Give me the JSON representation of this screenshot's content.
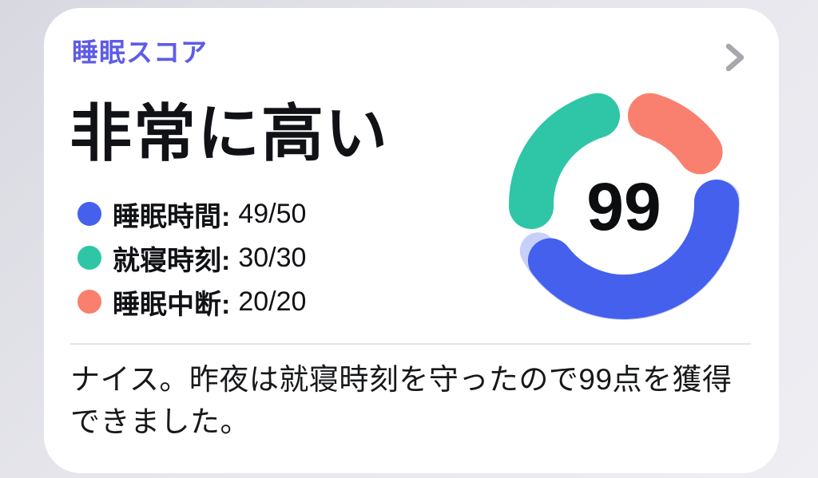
{
  "card": {
    "header": {
      "title": "睡眠スコア",
      "chevron_icon": "chevron-right"
    },
    "rating": "非常に高い",
    "legend": [
      {
        "label": "睡眠時間:",
        "value": "49/50",
        "color": "#4560ec"
      },
      {
        "label": "就寝時刻:",
        "value": "30/30",
        "color": "#2ec6a6"
      },
      {
        "label": "睡眠中断:",
        "value": "20/20",
        "color": "#f9806e"
      }
    ],
    "score": "99",
    "message": "ナイス。昨夜は就寝時刻を守ったので99点を獲得できました。"
  },
  "chart_data": {
    "type": "pie",
    "title": "睡眠スコア",
    "center_label": "99",
    "total_score": 99,
    "max_score": 100,
    "segments": [
      {
        "name": "睡眠中断",
        "value": 20,
        "max": 20,
        "color": "#f9806e"
      },
      {
        "name": "睡眠時間",
        "value": 49,
        "max": 50,
        "color": "#4560ec",
        "track_color": "#c7d0f8"
      },
      {
        "name": "就寝時刻",
        "value": 30,
        "max": 30,
        "color": "#2ec6a6"
      }
    ],
    "layout": {
      "donut": true,
      "start": "top",
      "clockwise": true,
      "rounded_caps": true,
      "gap_degrees": 6,
      "legend_position": "left"
    }
  },
  "colors": {
    "accent_indigo": "#5e5ce6",
    "blue": "#4560ec",
    "blue_track": "#c7d0f8",
    "teal": "#2ec6a6",
    "coral": "#f9806e",
    "chevron_gray": "#a7a7ac",
    "card_bg": "#ffffff"
  }
}
